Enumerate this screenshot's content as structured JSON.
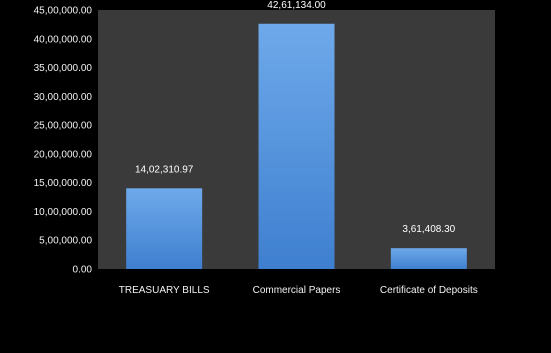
{
  "chart_data": {
    "type": "bar",
    "title": "",
    "xlabel": "",
    "ylabel": "",
    "categories": [
      "TREASUARY BILLS",
      "Commercial Papers",
      "Certificate of Deposits"
    ],
    "values": [
      1402310.97,
      4261134.0,
      361408.3
    ],
    "value_labels": [
      "14,02,310.97",
      "42,61,134.00",
      "3,61,408.30"
    ],
    "ylim": [
      0,
      4500000
    ],
    "yticks": [
      0,
      500000,
      1000000,
      1500000,
      2000000,
      2500000,
      3000000,
      3500000,
      4000000,
      4500000
    ],
    "ytick_labels": [
      "0.00",
      "5,00,000.00",
      "10,00,000.00",
      "15,00,000.00",
      "20,00,000.00",
      "25,00,000.00",
      "30,00,000.00",
      "35,00,000.00",
      "40,00,000.00",
      "45,00,000.00"
    ],
    "grid": false,
    "legend": "none",
    "colors": {
      "background": "#000000",
      "plot_area": "#3a3a3a",
      "bar_top": "#6ea9ea",
      "bar_bottom": "#3e7fcf",
      "text": "#f2f2f2"
    }
  }
}
